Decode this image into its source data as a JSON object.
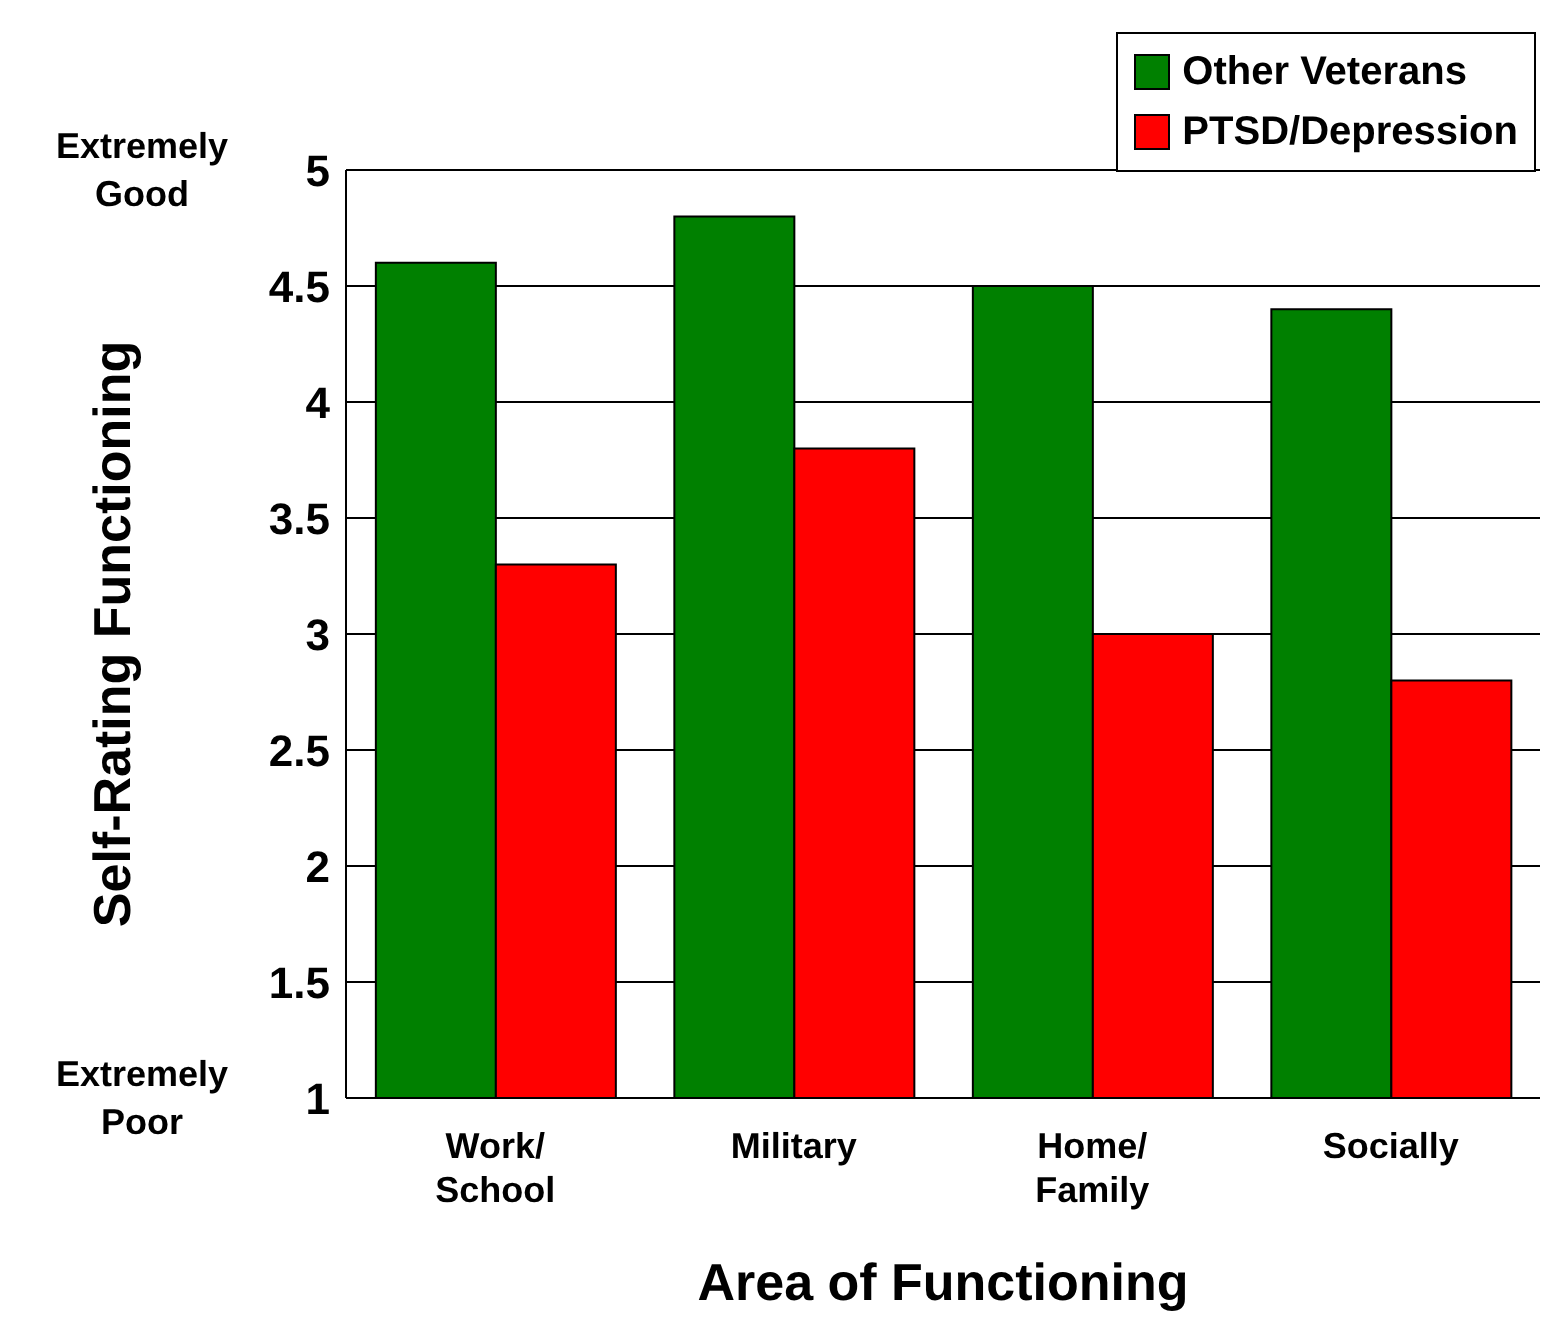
{
  "chart_data": {
    "type": "bar",
    "xlabel": "Area of Functioning",
    "ylabel": "Self-Rating Functioning",
    "categories": [
      "Work/ School",
      "Military",
      "Home/ Family",
      "Socially"
    ],
    "series": [
      {
        "name": "Other Veterans",
        "color": "#008000",
        "values": [
          4.6,
          4.8,
          4.5,
          4.4
        ]
      },
      {
        "name": "PTSD/Depression",
        "color": "#ff0000",
        "values": [
          3.3,
          3.8,
          3.0,
          2.8
        ]
      }
    ],
    "ylim": [
      1,
      5
    ],
    "yticks": [
      1,
      1.5,
      2,
      2.5,
      3,
      3.5,
      4,
      4.5,
      5
    ],
    "grid": "y",
    "legend": "top right",
    "annotations": [
      "Extremely Good",
      "Extremely Poor"
    ]
  }
}
